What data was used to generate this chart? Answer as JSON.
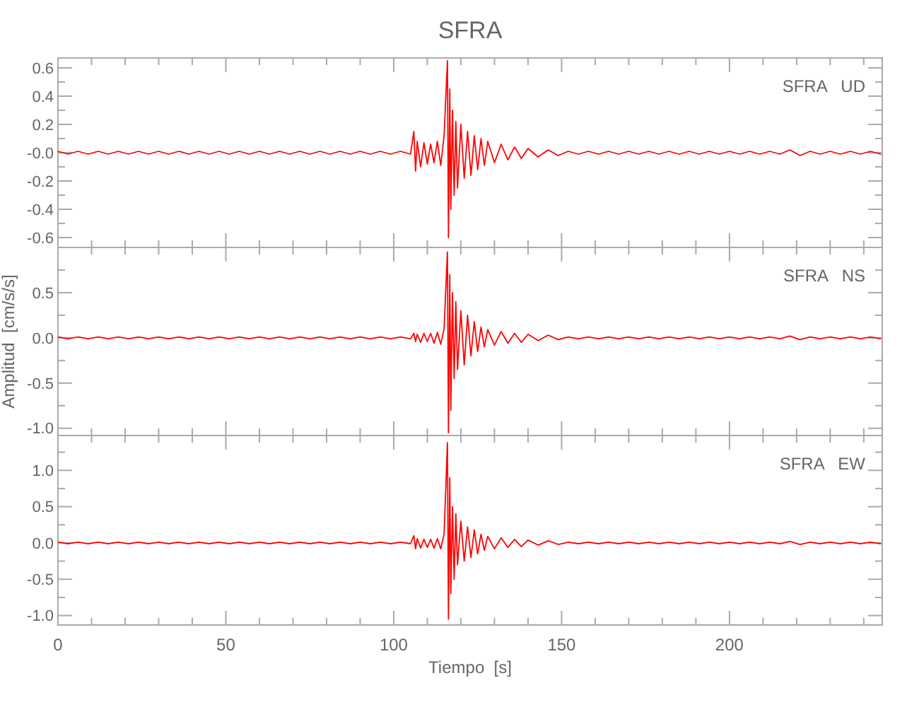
{
  "chart_data": [
    {
      "type": "line",
      "title": "SFRA",
      "annotations": [
        "SFRA   UD"
      ],
      "tick_labels": "y",
      "x": [
        0,
        3,
        6,
        9,
        12,
        15,
        18,
        21,
        24,
        27,
        30,
        33,
        36,
        39,
        42,
        45,
        48,
        51,
        54,
        57,
        60,
        63,
        66,
        69,
        72,
        75,
        78,
        81,
        84,
        87,
        90,
        93,
        96,
        99,
        102,
        105,
        106,
        106.5,
        107,
        108,
        109,
        110,
        111,
        112,
        113,
        114,
        115,
        116,
        116.3,
        116.7,
        117,
        117.5,
        118,
        118.5,
        119,
        120,
        121,
        122,
        123,
        124,
        125,
        126,
        127,
        128,
        130,
        132,
        134,
        136,
        138,
        140,
        143,
        146,
        149,
        152,
        155,
        158,
        161,
        164,
        167,
        170,
        173,
        176,
        179,
        182,
        185,
        188,
        191,
        194,
        197,
        200,
        203,
        206,
        209,
        212,
        215,
        218,
        221,
        224,
        227,
        230,
        233,
        236,
        239,
        242,
        245
      ],
      "series": [
        {
          "color": "#ff0000",
          "values": [
            0.01,
            -0.01,
            0.01,
            -0.01,
            0.01,
            -0.01,
            0.01,
            -0.01,
            0.01,
            -0.01,
            0.01,
            -0.01,
            0.01,
            -0.01,
            0.01,
            -0.01,
            0.01,
            -0.01,
            0.01,
            -0.01,
            0.01,
            -0.01,
            0.01,
            -0.01,
            0.01,
            -0.01,
            0.01,
            -0.01,
            0.01,
            -0.01,
            0.01,
            -0.01,
            0.01,
            -0.01,
            0.01,
            -0.01,
            0.15,
            -0.13,
            0.08,
            -0.1,
            0.07,
            -0.08,
            0.06,
            -0.07,
            0.08,
            -0.09,
            0.12,
            0.65,
            -0.6,
            0.45,
            -0.4,
            0.3,
            -0.3,
            0.22,
            -0.25,
            0.2,
            -0.18,
            0.15,
            -0.16,
            0.12,
            -0.12,
            0.1,
            -0.09,
            0.08,
            -0.07,
            0.06,
            -0.05,
            0.04,
            -0.04,
            0.03,
            -0.03,
            0.02,
            -0.02,
            0.01,
            -0.01,
            0.01,
            -0.01,
            0.01,
            -0.01,
            0.01,
            -0.01,
            0.01,
            -0.01,
            0.01,
            -0.01,
            0.01,
            -0.01,
            0.01,
            -0.01,
            0.01,
            -0.01,
            0.01,
            -0.01,
            0.01,
            -0.01,
            0.02,
            -0.02,
            0.01,
            -0.01,
            0.01,
            -0.01,
            0.01,
            -0.01,
            0.01,
            -0.01
          ]
        }
      ],
      "xlim": [
        0,
        245.5
      ],
      "xticks": [
        0,
        {
          "value": 10,
          "label": null
        },
        {
          "value": 20,
          "label": null
        },
        {
          "value": 30,
          "label": null
        },
        {
          "value": 40,
          "label": null
        },
        50,
        {
          "value": 60,
          "label": null
        },
        {
          "value": 70,
          "label": null
        },
        {
          "value": 80,
          "label": null
        },
        {
          "value": 90,
          "label": null
        },
        100,
        {
          "value": 110,
          "label": null
        },
        {
          "value": 120,
          "label": null
        },
        {
          "value": 130,
          "label": null
        },
        {
          "value": 140,
          "label": null
        },
        150,
        {
          "value": 160,
          "label": null
        },
        {
          "value": 170,
          "label": null
        },
        {
          "value": 180,
          "label": null
        },
        {
          "value": 190,
          "label": null
        },
        200,
        {
          "value": 210,
          "label": null
        },
        {
          "value": 220,
          "label": null
        },
        {
          "value": 230,
          "label": null
        },
        {
          "value": 240,
          "label": null
        }
      ],
      "ylim": [
        -0.67,
        0.67
      ],
      "yticks": [
        -0.6,
        {
          "value": -0.5,
          "label": null
        },
        -0.4,
        {
          "value": -0.3,
          "label": null
        },
        -0.2,
        {
          "value": -0.1,
          "label": null
        },
        {
          "value": 0,
          "label": "-0.0"
        },
        {
          "value": 0.1,
          "label": null
        },
        0.2,
        {
          "value": 0.3,
          "label": null
        },
        0.4,
        {
          "value": 0.5,
          "label": null
        },
        0.6
      ]
    },
    {
      "type": "line",
      "ylabel": "Amplitud  [cm/s/s]",
      "annotations": [
        "SFRA   NS"
      ],
      "tick_labels": "y",
      "x": [
        0,
        3,
        6,
        9,
        12,
        15,
        18,
        21,
        24,
        27,
        30,
        33,
        36,
        39,
        42,
        45,
        48,
        51,
        54,
        57,
        60,
        63,
        66,
        69,
        72,
        75,
        78,
        81,
        84,
        87,
        90,
        93,
        96,
        99,
        102,
        105,
        106,
        106.5,
        107,
        108,
        109,
        110,
        111,
        112,
        113,
        114,
        115,
        116,
        116.3,
        116.7,
        117,
        117.5,
        118,
        118.5,
        119,
        120,
        121,
        122,
        123,
        124,
        125,
        126,
        127,
        128,
        130,
        132,
        134,
        136,
        138,
        140,
        143,
        146,
        149,
        152,
        155,
        158,
        161,
        164,
        167,
        170,
        173,
        176,
        179,
        182,
        185,
        188,
        191,
        194,
        197,
        200,
        203,
        206,
        209,
        212,
        215,
        218,
        221,
        224,
        227,
        230,
        233,
        236,
        239,
        242,
        245
      ],
      "series": [
        {
          "color": "#ff0000",
          "values": [
            0.01,
            -0.01,
            0.01,
            -0.01,
            0.01,
            -0.01,
            0.01,
            -0.01,
            0.01,
            -0.01,
            0.01,
            -0.01,
            0.01,
            -0.01,
            0.01,
            -0.01,
            0.01,
            -0.01,
            0.01,
            -0.01,
            0.01,
            -0.01,
            0.01,
            -0.01,
            0.01,
            -0.01,
            0.01,
            -0.01,
            0.01,
            -0.01,
            0.01,
            -0.01,
            0.01,
            -0.01,
            0.01,
            -0.01,
            0.05,
            -0.04,
            0.04,
            -0.05,
            0.05,
            -0.04,
            0.05,
            -0.06,
            0.06,
            -0.07,
            0.1,
            0.95,
            -1.05,
            0.7,
            -0.8,
            0.5,
            -0.45,
            0.4,
            -0.35,
            0.3,
            -0.3,
            0.25,
            -0.2,
            0.18,
            -0.15,
            0.12,
            -0.1,
            0.09,
            -0.08,
            0.07,
            -0.06,
            0.05,
            -0.05,
            0.04,
            -0.03,
            0.03,
            -0.02,
            0.01,
            -0.01,
            0.01,
            -0.01,
            0.01,
            -0.01,
            0.01,
            -0.01,
            0.01,
            -0.01,
            0.01,
            -0.01,
            0.01,
            -0.01,
            0.01,
            -0.01,
            0.01,
            -0.01,
            0.01,
            -0.01,
            0.01,
            -0.01,
            0.02,
            -0.02,
            0.01,
            -0.01,
            0.01,
            -0.01,
            0.01,
            -0.01,
            0.01,
            -0.01
          ]
        }
      ],
      "xlim": [
        0,
        245.5
      ],
      "xticks": [
        0,
        {
          "value": 10,
          "label": null
        },
        {
          "value": 20,
          "label": null
        },
        {
          "value": 30,
          "label": null
        },
        {
          "value": 40,
          "label": null
        },
        50,
        {
          "value": 60,
          "label": null
        },
        {
          "value": 70,
          "label": null
        },
        {
          "value": 80,
          "label": null
        },
        {
          "value": 90,
          "label": null
        },
        100,
        {
          "value": 110,
          "label": null
        },
        {
          "value": 120,
          "label": null
        },
        {
          "value": 130,
          "label": null
        },
        {
          "value": 140,
          "label": null
        },
        150,
        {
          "value": 160,
          "label": null
        },
        {
          "value": 170,
          "label": null
        },
        {
          "value": 180,
          "label": null
        },
        {
          "value": 190,
          "label": null
        },
        200,
        {
          "value": 210,
          "label": null
        },
        {
          "value": 220,
          "label": null
        },
        {
          "value": 230,
          "label": null
        },
        {
          "value": 240,
          "label": null
        }
      ],
      "ylim": [
        -1.08,
        1.0
      ],
      "yticks": [
        {
          "value": -1,
          "label": "-1.0"
        },
        {
          "value": -0.75,
          "label": null
        },
        -0.5,
        {
          "value": -0.25,
          "label": null
        },
        {
          "value": 0,
          "label": "0.0"
        },
        {
          "value": 0.25,
          "label": null
        },
        0.5,
        {
          "value": 0.75,
          "label": null
        }
      ]
    },
    {
      "type": "line",
      "xlabel": "Tiempo  [s]",
      "annotations": [
        "SFRA   EW"
      ],
      "x": [
        0,
        3,
        6,
        9,
        12,
        15,
        18,
        21,
        24,
        27,
        30,
        33,
        36,
        39,
        42,
        45,
        48,
        51,
        54,
        57,
        60,
        63,
        66,
        69,
        72,
        75,
        78,
        81,
        84,
        87,
        90,
        93,
        96,
        99,
        102,
        105,
        106,
        106.5,
        107,
        108,
        109,
        110,
        111,
        112,
        113,
        114,
        115,
        116,
        116.3,
        116.7,
        117,
        117.5,
        118,
        118.5,
        119,
        120,
        121,
        122,
        123,
        124,
        125,
        126,
        127,
        128,
        130,
        132,
        134,
        136,
        138,
        140,
        143,
        146,
        149,
        152,
        155,
        158,
        161,
        164,
        167,
        170,
        173,
        176,
        179,
        182,
        185,
        188,
        191,
        194,
        197,
        200,
        203,
        206,
        209,
        212,
        215,
        218,
        221,
        224,
        227,
        230,
        233,
        236,
        239,
        242,
        245
      ],
      "series": [
        {
          "color": "#ff0000",
          "values": [
            0.01,
            -0.01,
            0.01,
            -0.01,
            0.01,
            -0.01,
            0.01,
            -0.01,
            0.01,
            -0.01,
            0.01,
            -0.01,
            0.01,
            -0.01,
            0.01,
            -0.01,
            0.01,
            -0.01,
            0.01,
            -0.01,
            0.01,
            -0.01,
            0.01,
            -0.01,
            0.01,
            -0.01,
            0.01,
            -0.01,
            0.01,
            -0.01,
            0.01,
            -0.01,
            0.01,
            -0.01,
            0.01,
            -0.01,
            0.1,
            -0.08,
            0.06,
            -0.07,
            0.05,
            -0.06,
            0.05,
            -0.07,
            0.06,
            -0.08,
            0.12,
            1.38,
            -1.05,
            0.9,
            -0.7,
            0.5,
            -0.5,
            0.4,
            -0.3,
            0.3,
            -0.25,
            0.22,
            -0.2,
            0.18,
            -0.15,
            0.12,
            -0.1,
            0.09,
            -0.08,
            0.07,
            -0.06,
            0.05,
            -0.05,
            0.04,
            -0.03,
            0.03,
            -0.02,
            0.01,
            -0.01,
            0.01,
            -0.01,
            0.01,
            -0.01,
            0.01,
            -0.01,
            0.01,
            -0.01,
            0.01,
            -0.01,
            0.01,
            -0.01,
            0.01,
            -0.01,
            0.01,
            -0.01,
            0.01,
            -0.01,
            0.01,
            -0.01,
            0.02,
            -0.02,
            0.01,
            -0.01,
            0.01,
            -0.01,
            0.01,
            -0.01,
            0.01,
            -0.01
          ]
        }
      ],
      "xlim": [
        0,
        245.5
      ],
      "xticks": [
        0,
        {
          "value": 10,
          "label": null
        },
        {
          "value": 20,
          "label": null
        },
        {
          "value": 30,
          "label": null
        },
        {
          "value": 40,
          "label": null
        },
        50,
        {
          "value": 60,
          "label": null
        },
        {
          "value": 70,
          "label": null
        },
        {
          "value": 80,
          "label": null
        },
        {
          "value": 90,
          "label": null
        },
        100,
        {
          "value": 110,
          "label": null
        },
        {
          "value": 120,
          "label": null
        },
        {
          "value": 130,
          "label": null
        },
        {
          "value": 140,
          "label": null
        },
        150,
        {
          "value": 160,
          "label": null
        },
        {
          "value": 170,
          "label": null
        },
        {
          "value": 180,
          "label": null
        },
        {
          "value": 190,
          "label": null
        },
        200,
        {
          "value": 210,
          "label": null
        },
        {
          "value": 220,
          "label": null
        },
        {
          "value": 230,
          "label": null
        },
        {
          "value": 240,
          "label": null
        }
      ],
      "ylim": [
        -1.13,
        1.48
      ],
      "yticks": [
        {
          "value": -1,
          "label": "-1.0"
        },
        {
          "value": -0.75,
          "label": null
        },
        -0.5,
        {
          "value": -0.25,
          "label": null
        },
        {
          "value": 0,
          "label": "0.0"
        },
        {
          "value": 0.25,
          "label": null
        },
        0.5,
        {
          "value": 0.75,
          "label": null
        },
        {
          "value": 1,
          "label": "1.0"
        },
        {
          "value": 1.25,
          "label": null
        }
      ]
    }
  ]
}
